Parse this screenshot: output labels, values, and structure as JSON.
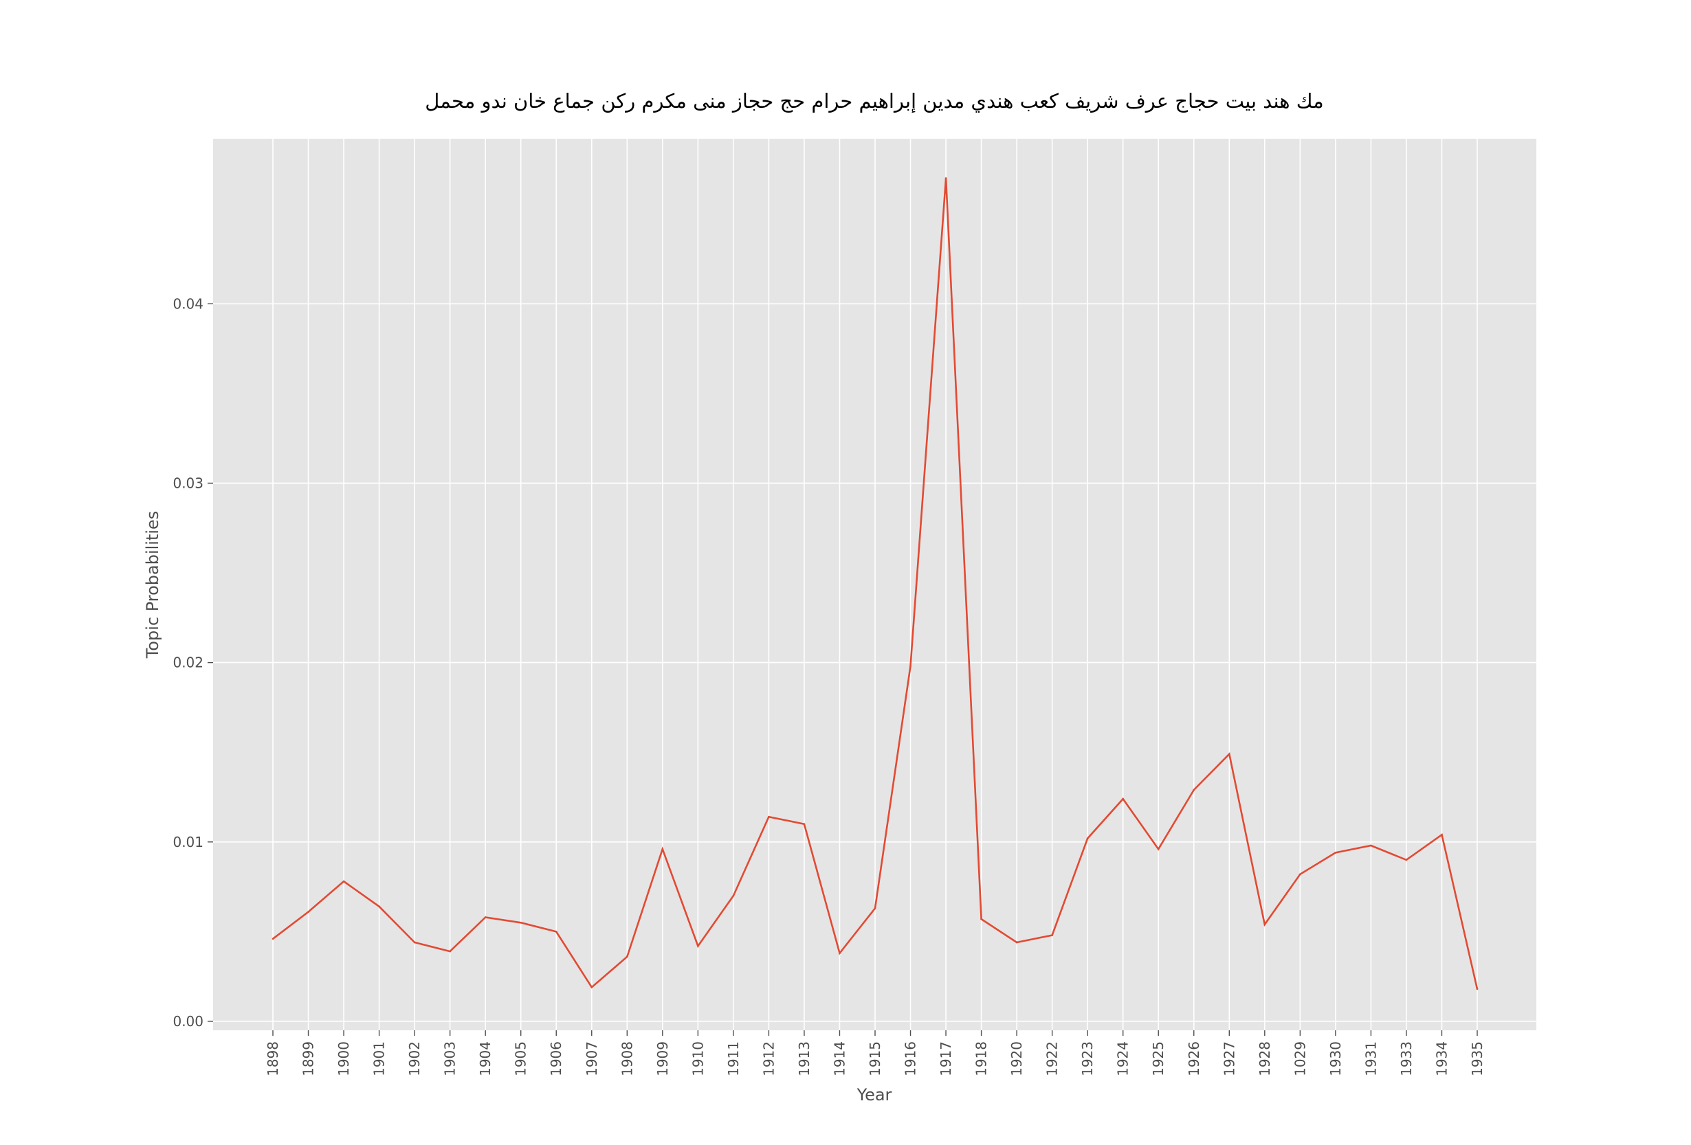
{
  "chart_data": {
    "type": "line",
    "title": "مك هند بيت حجاج عرف شريف كعب هندي مدين إبراهيم حرام حج حجاز منى مكرم ركن جماع خان ندو محمل",
    "xlabel": "Year",
    "ylabel": "Topic Probabilities",
    "categories": [
      "1898",
      "1899",
      "1900",
      "1901",
      "1902",
      "1903",
      "1904",
      "1905",
      "1906",
      "1907",
      "1908",
      "1909",
      "1910",
      "1911",
      "1912",
      "1913",
      "1914",
      "1915",
      "1916",
      "1917",
      "1918",
      "1920",
      "1922",
      "1923",
      "1924",
      "1925",
      "1926",
      "1927",
      "1928",
      "1029",
      "1930",
      "1931",
      "1933",
      "1934",
      "1935"
    ],
    "series": [
      {
        "values": [
          0.0046,
          0.0061,
          0.0078,
          0.0064,
          0.0044,
          0.0039,
          0.0058,
          0.0055,
          0.005,
          0.0019,
          0.0036,
          0.0096,
          0.0042,
          0.007,
          0.0114,
          0.011,
          0.0038,
          0.0063,
          0.0198,
          0.047,
          0.0057,
          0.0044,
          0.0048,
          0.0102,
          0.0124,
          0.0096,
          0.0129,
          0.0149,
          0.0054,
          0.0082,
          0.0094,
          0.0098,
          0.009,
          0.0104,
          0.0018
        ],
        "color": "#e24a33"
      }
    ],
    "yticks": [
      "0.00",
      "0.01",
      "0.02",
      "0.03",
      "0.04"
    ],
    "ylim": [
      -0.0005,
      0.0492
    ],
    "grid": true,
    "colors": {
      "plot_background": "#e5e5e5",
      "grid": "#ffffff",
      "line": "#e24a33"
    }
  }
}
